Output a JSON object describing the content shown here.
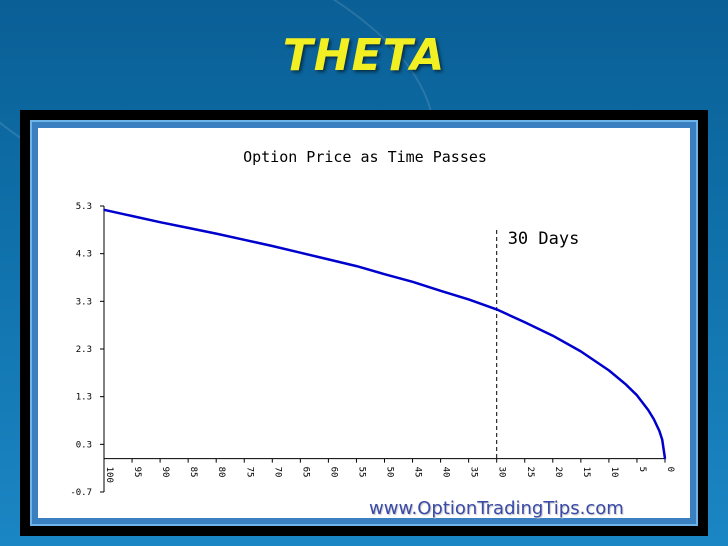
{
  "slide": {
    "title": "THETA"
  },
  "watermark": "www.OptionTradingTips.com",
  "colors": {
    "background": "#0f6fa8",
    "title": "#f2ef22",
    "curve": "#0000cc"
  },
  "chart_data": {
    "type": "line",
    "title": "Option Price as Time Passes",
    "xlabel": "",
    "ylabel": "",
    "x_reversed": true,
    "xlim": [
      100,
      0
    ],
    "ylim": [
      -0.7,
      5.3
    ],
    "y_ticks": [
      "5.3",
      "4.3",
      "3.3",
      "2.3",
      "1.3",
      "0.3",
      "-0.7"
    ],
    "x_ticks": [
      "100",
      "95",
      "90",
      "85",
      "80",
      "75",
      "70",
      "65",
      "60",
      "55",
      "50",
      "45",
      "40",
      "35",
      "30",
      "25",
      "20",
      "15",
      "10",
      "5",
      "0"
    ],
    "grid": false,
    "annotations": [
      {
        "x": 30,
        "text": "30 Days",
        "style": "dashed-vertical-line"
      }
    ],
    "series": [
      {
        "x": [
          100,
          95,
          90,
          85,
          80,
          75,
          70,
          65,
          60,
          55,
          50,
          45,
          40,
          35,
          30,
          25,
          20,
          15,
          10,
          7,
          5,
          3,
          2,
          1,
          0.5,
          0
        ],
        "values": [
          5.22,
          5.09,
          4.96,
          4.84,
          4.72,
          4.59,
          4.46,
          4.32,
          4.18,
          4.04,
          3.87,
          3.71,
          3.52,
          3.34,
          3.13,
          2.86,
          2.58,
          2.25,
          1.85,
          1.56,
          1.33,
          1.02,
          0.83,
          0.58,
          0.4,
          0.0
        ]
      }
    ]
  }
}
